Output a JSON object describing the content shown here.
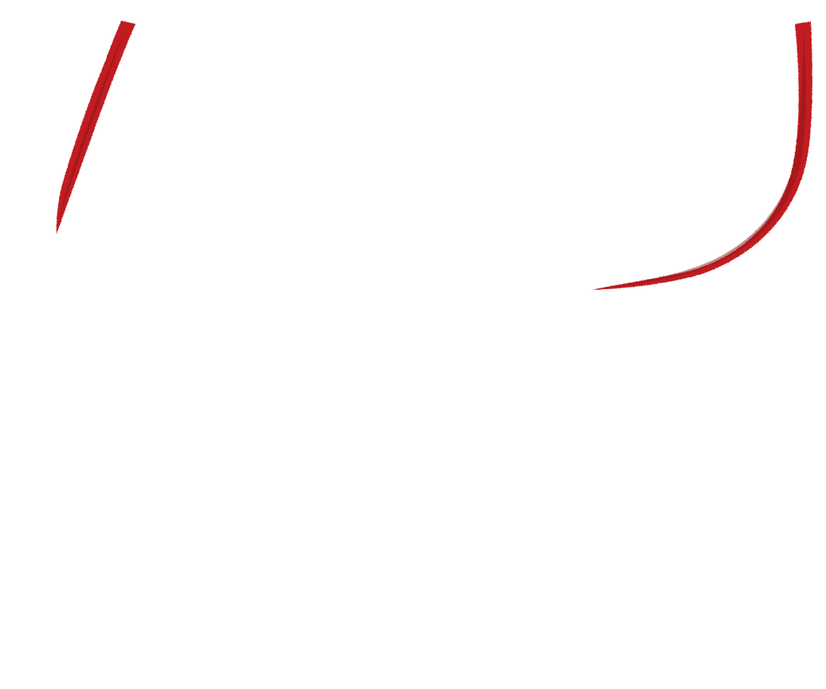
{
  "canvas": {
    "background": "#ffffff"
  },
  "strokes": {
    "color": "#c11f24",
    "shadow_color": "#8e1518",
    "items": [
      {
        "name": "left-brush-stroke"
      },
      {
        "name": "right-curved-brush-stroke"
      }
    ]
  }
}
